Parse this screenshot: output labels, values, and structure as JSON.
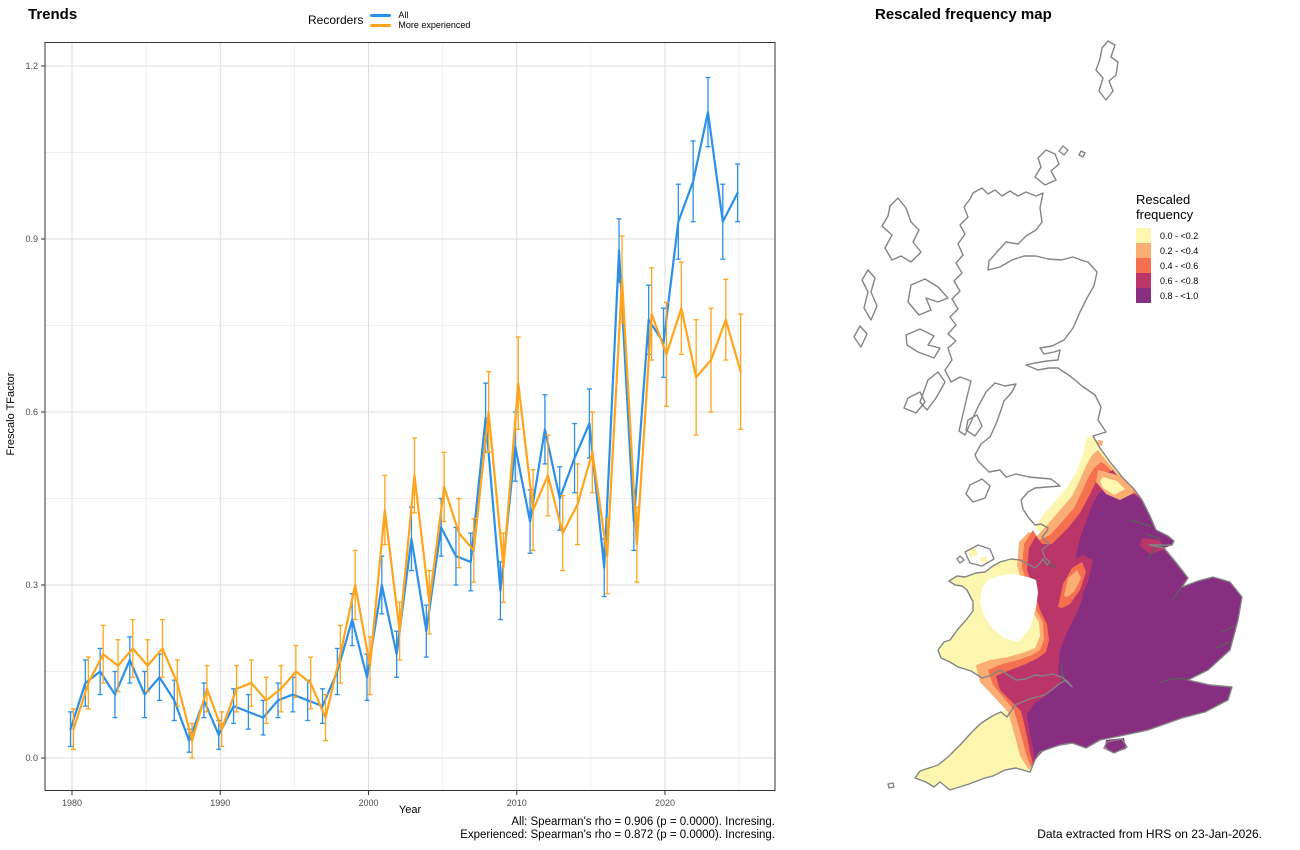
{
  "trends_chart": {
    "title": "Trends",
    "legend": {
      "title": "Recorders",
      "items": [
        {
          "label": "All",
          "color": "#2B90EA"
        },
        {
          "label": "More experienced",
          "color": "#FFA41B"
        }
      ]
    },
    "x_axis": {
      "label": "Year",
      "ticks": [
        1980,
        1990,
        2000,
        2010,
        2020
      ],
      "minor_ticks": [
        1985,
        1995,
        2005,
        2015,
        2025
      ]
    },
    "y_axis": {
      "label": "Frescalo TFactor",
      "ticks": [
        "0.0",
        "0.3",
        "0.6",
        "0.9",
        "1.2"
      ],
      "tick_values": [
        0.0,
        0.3,
        0.6,
        0.9,
        1.2
      ],
      "minor_values": [
        0.15,
        0.45,
        0.75,
        1.05
      ]
    },
    "caption_line1": "All: Spearman's rho = 0.906 (p = 0.0000). Incresing.",
    "caption_line2": "Experienced: Spearman's rho = 0.872 (p = 0.0000). Incresing.",
    "colors": {
      "grid_major": "#DCDCDC",
      "grid_minor": "#EFEFEF",
      "panel_border": "#333333",
      "tick": "#333333",
      "tick_label": "#4D4D4D"
    }
  },
  "map": {
    "title": "Rescaled frequency map",
    "legend": {
      "title_line1": "Rescaled",
      "title_line2": "frequency",
      "classes": [
        {
          "label": "0.0 - <0.2",
          "color": "#FCF6B1"
        },
        {
          "label": "0.2 - <0.4",
          "color": "#FBAE74"
        },
        {
          "label": "0.4 - <0.6",
          "color": "#F4704E"
        },
        {
          "label": "0.6 - <0.8",
          "color": "#BB3569"
        },
        {
          "label": "0.8 - <1.0",
          "color": "#872E80"
        }
      ]
    },
    "caption": "Data extracted from HRS on 23-Jan-2026.",
    "outline_color": "#848484",
    "river_color": "#5E5E5E"
  },
  "chart_data": [
    {
      "type": "line",
      "title": "Trends",
      "xlabel": "Year",
      "ylabel": "Frescalo TFactor",
      "xlim": [
        1978,
        2027
      ],
      "ylim": [
        0.0,
        1.2
      ],
      "grid": true,
      "legend_title": "Recorders",
      "legend_position": "top",
      "error_bars": true,
      "x": [
        1980,
        1981,
        1982,
        1983,
        1984,
        1985,
        1986,
        1987,
        1988,
        1989,
        1990,
        1991,
        1992,
        1993,
        1994,
        1995,
        1996,
        1997,
        1998,
        1999,
        2000,
        2001,
        2002,
        2003,
        2004,
        2005,
        2006,
        2007,
        2008,
        2009,
        2010,
        2011,
        2012,
        2013,
        2014,
        2015,
        2016,
        2017,
        2018,
        2019,
        2020,
        2021,
        2022,
        2023,
        2024,
        2025
      ],
      "series": [
        {
          "name": "All",
          "color": "#2B90EA",
          "values": [
            0.05,
            0.13,
            0.15,
            0.11,
            0.17,
            0.11,
            0.14,
            0.1,
            0.03,
            0.1,
            0.04,
            0.09,
            0.08,
            0.07,
            0.1,
            0.11,
            0.1,
            0.09,
            0.15,
            0.24,
            0.14,
            0.3,
            0.18,
            0.38,
            0.22,
            0.4,
            0.35,
            0.34,
            0.59,
            0.29,
            0.54,
            0.41,
            0.57,
            0.45,
            0.52,
            0.58,
            0.33,
            0.88,
            0.41,
            0.76,
            0.72,
            0.93,
            1.0,
            1.12,
            0.93,
            0.98
          ],
          "err": [
            0.03,
            0.04,
            0.04,
            0.04,
            0.04,
            0.04,
            0.04,
            0.035,
            0.02,
            0.03,
            0.025,
            0.03,
            0.03,
            0.03,
            0.03,
            0.03,
            0.035,
            0.03,
            0.04,
            0.045,
            0.04,
            0.05,
            0.04,
            0.055,
            0.045,
            0.05,
            0.05,
            0.05,
            0.06,
            0.05,
            0.06,
            0.055,
            0.06,
            0.055,
            0.06,
            0.06,
            0.05,
            0.055,
            0.05,
            0.06,
            0.06,
            0.065,
            0.07,
            0.06,
            0.065,
            0.05
          ]
        },
        {
          "name": "More experienced",
          "color": "#FFA41B",
          "values": [
            0.05,
            0.13,
            0.18,
            0.16,
            0.19,
            0.16,
            0.19,
            0.13,
            0.03,
            0.12,
            0.05,
            0.12,
            0.13,
            0.1,
            0.12,
            0.15,
            0.13,
            0.07,
            0.18,
            0.3,
            0.16,
            0.43,
            0.22,
            0.49,
            0.27,
            0.47,
            0.39,
            0.36,
            0.6,
            0.33,
            0.65,
            0.43,
            0.49,
            0.39,
            0.44,
            0.53,
            0.35,
            0.83,
            0.37,
            0.77,
            0.7,
            0.78,
            0.66,
            0.69,
            0.76,
            0.67
          ],
          "err": [
            0.035,
            0.045,
            0.05,
            0.045,
            0.05,
            0.045,
            0.05,
            0.04,
            0.03,
            0.04,
            0.03,
            0.04,
            0.04,
            0.04,
            0.04,
            0.045,
            0.045,
            0.04,
            0.05,
            0.06,
            0.05,
            0.06,
            0.05,
            0.065,
            0.055,
            0.06,
            0.06,
            0.055,
            0.07,
            0.06,
            0.08,
            0.07,
            0.07,
            0.065,
            0.07,
            0.07,
            0.065,
            0.075,
            0.065,
            0.08,
            0.09,
            0.08,
            0.1,
            0.09,
            0.07,
            0.1
          ]
        }
      ],
      "caption": [
        "All: Spearman's rho = 0.906 (p = 0.0000). Incresing.",
        "Experienced: Spearman's rho = 0.872 (p = 0.0000). Incresing."
      ]
    },
    {
      "type": "heatmap",
      "title": "Rescaled frequency map",
      "legend_title": "Rescaled frequency",
      "classes": [
        "0.0 - <0.2",
        "0.2 - <0.4",
        "0.4 - <0.6",
        "0.6 - <0.8",
        "0.8 - <1.0"
      ],
      "class_colors": [
        "#FCF6B1",
        "#FBAE74",
        "#F4704E",
        "#BB3569",
        "#872E80"
      ],
      "regions": [
        {
          "region": "Central, southern and eastern England",
          "value": "0.8 - <1.0"
        },
        {
          "region": "Northumberland coastal fringe",
          "value": "0.0 - <0.4"
        },
        {
          "region": "Pennines / NW England band",
          "value": "0.0 - <0.6"
        },
        {
          "region": "Lake District (Cumbria)",
          "value": "no data"
        },
        {
          "region": "Welsh border band",
          "value": "0.2 - <0.8"
        },
        {
          "region": "Coastal Wales and Pembrokeshire",
          "value": "0.0 - <0.2"
        },
        {
          "region": "Central Wales",
          "value": "no data"
        },
        {
          "region": "Cornwall and west Devon",
          "value": "0.0 - <0.2"
        },
        {
          "region": "East Devon gradient",
          "value": "0.2 - <0.8"
        },
        {
          "region": "Scotland",
          "value": "no data"
        }
      ],
      "caption": "Data extracted from HRS on 23-Jan-2026."
    }
  ]
}
